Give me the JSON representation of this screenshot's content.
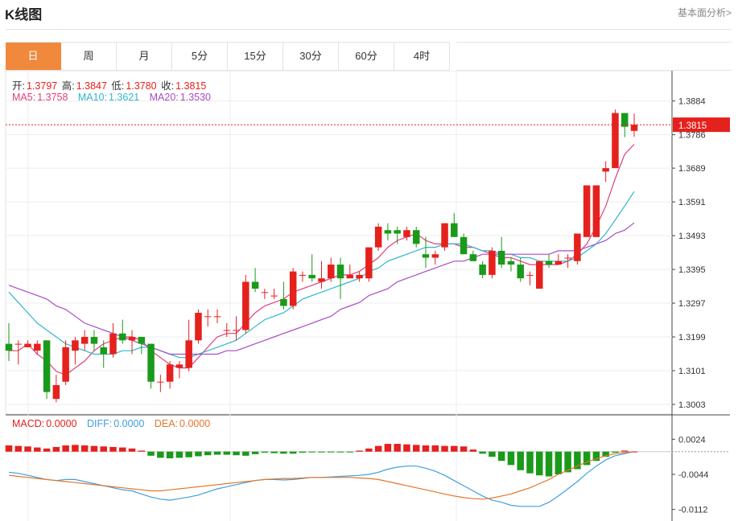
{
  "header": {
    "title": "K线图",
    "link": "基本面分析>"
  },
  "tabs": [
    {
      "label": "日",
      "active": true
    },
    {
      "label": "周"
    },
    {
      "label": "月"
    },
    {
      "label": "5分"
    },
    {
      "label": "15分"
    },
    {
      "label": "30分"
    },
    {
      "label": "60分"
    },
    {
      "label": "4时"
    }
  ],
  "ohlc_info": {
    "open_label": "开:",
    "open": "1.3797",
    "high_label": "高:",
    "high": "1.3847",
    "low_label": "低:",
    "low": "1.3780",
    "close_label": "收:",
    "close": "1.3815"
  },
  "ma_info": {
    "ma5_label": "MA5:",
    "ma5": "1.3758",
    "ma10_label": "MA10:",
    "ma10": "1.3621",
    "ma20_label": "MA20:",
    "ma20": "1.3530"
  },
  "macd_info": {
    "macd_label": "MACD:",
    "macd": "0.0000",
    "diff_label": "DIFF:",
    "diff": "0.0000",
    "dea_label": "DEA:",
    "dea": "0.0000"
  },
  "colors": {
    "up": "#e5211d",
    "down": "#1a9a1a",
    "ma5": "#e0407a",
    "ma10": "#2fb6cf",
    "ma20": "#a84cc4",
    "diff": "#3f9fe0",
    "dea": "#e5762a",
    "accent": "#f0893b"
  },
  "chart_data": [
    {
      "type": "candlestick",
      "y_ticks": [
        "1.3884",
        "1.3786",
        "1.3689",
        "1.3591",
        "1.3493",
        "1.3395",
        "1.3297",
        "1.3199",
        "1.3101",
        "1.3003"
      ],
      "ylim": [
        1.2975,
        1.3925
      ],
      "last_price": "1.3815",
      "candles": [
        [
          1.3179,
          1.3159,
          1.3239,
          1.3129
        ],
        [
          1.3179,
          1.3179,
          1.3189,
          1.3119
        ],
        [
          1.3169,
          1.3179,
          1.3189,
          1.3169
        ],
        [
          1.3159,
          1.3179,
          1.3189,
          1.3149
        ],
        [
          1.3189,
          1.3039,
          1.3189,
          1.3019
        ],
        [
          1.3019,
          1.3059,
          1.3089,
          1.3009
        ],
        [
          1.3069,
          1.3169,
          1.3189,
          1.3059
        ],
        [
          1.3159,
          1.3189,
          1.3199,
          1.3119
        ],
        [
          1.3179,
          1.3199,
          1.3219,
          1.3159
        ],
        [
          1.3199,
          1.3179,
          1.3219,
          1.3159
        ],
        [
          1.3169,
          1.3149,
          1.3189,
          1.3109
        ],
        [
          1.3149,
          1.3209,
          1.3239,
          1.3139
        ],
        [
          1.3209,
          1.3189,
          1.3249,
          1.3179
        ],
        [
          1.3189,
          1.3199,
          1.3219,
          1.3149
        ],
        [
          1.3199,
          1.3179,
          1.3199,
          1.3149
        ],
        [
          1.3179,
          1.3069,
          1.3179,
          1.3049
        ],
        [
          1.3069,
          1.3069,
          1.3089,
          1.3039
        ],
        [
          1.3069,
          1.3119,
          1.3129,
          1.3049
        ],
        [
          1.3109,
          1.3119,
          1.3129,
          1.3079
        ],
        [
          1.3109,
          1.3189,
          1.3249,
          1.3099
        ],
        [
          1.3189,
          1.3269,
          1.3279,
          1.3179
        ],
        [
          1.3259,
          1.3259,
          1.3279,
          1.3229
        ],
        [
          1.3259,
          1.3259,
          1.3279,
          1.3239
        ],
        [
          1.3219,
          1.3219,
          1.3239,
          1.3199
        ],
        [
          1.3219,
          1.3219,
          1.3259,
          1.3189
        ],
        [
          1.3219,
          1.3359,
          1.3379,
          1.3209
        ],
        [
          1.3359,
          1.3339,
          1.3399,
          1.3329
        ],
        [
          1.3329,
          1.3329,
          1.3339,
          1.3309
        ],
        [
          1.3319,
          1.3319,
          1.3339,
          1.3309
        ],
        [
          1.3309,
          1.3289,
          1.3359,
          1.3279
        ],
        [
          1.3289,
          1.3389,
          1.3399,
          1.3279
        ],
        [
          1.3379,
          1.3379,
          1.3389,
          1.3359
        ],
        [
          1.3379,
          1.3369,
          1.3439,
          1.3359
        ],
        [
          1.3359,
          1.3369,
          1.3419,
          1.3339
        ],
        [
          1.3369,
          1.3409,
          1.3429,
          1.3359
        ],
        [
          1.3409,
          1.3369,
          1.3429,
          1.3309
        ],
        [
          1.3369,
          1.3379,
          1.3409,
          1.3369
        ],
        [
          1.3369,
          1.3379,
          1.3389,
          1.3359
        ],
        [
          1.3369,
          1.3459,
          1.3459,
          1.3359
        ],
        [
          1.3459,
          1.3519,
          1.3529,
          1.3449
        ],
        [
          1.3509,
          1.3499,
          1.3529,
          1.3479
        ],
        [
          1.3509,
          1.3499,
          1.3519,
          1.3469
        ],
        [
          1.3489,
          1.3509,
          1.3519,
          1.3479
        ],
        [
          1.3509,
          1.3469,
          1.3519,
          1.3459
        ],
        [
          1.3439,
          1.3429,
          1.3489,
          1.3399
        ],
        [
          1.3429,
          1.3439,
          1.3449,
          1.3409
        ],
        [
          1.3459,
          1.3529,
          1.3529,
          1.3449
        ],
        [
          1.3529,
          1.3489,
          1.3559,
          1.3489
        ],
        [
          1.3489,
          1.3439,
          1.3499,
          1.3439
        ],
        [
          1.3439,
          1.3419,
          1.3449,
          1.3419
        ],
        [
          1.3409,
          1.3379,
          1.3419,
          1.3369
        ],
        [
          1.3379,
          1.3449,
          1.3459,
          1.3369
        ],
        [
          1.3449,
          1.3409,
          1.3489,
          1.3399
        ],
        [
          1.3419,
          1.3409,
          1.3429,
          1.3389
        ],
        [
          1.3409,
          1.3369,
          1.3429,
          1.3359
        ],
        [
          1.3379,
          1.3379,
          1.3389,
          1.3349
        ],
        [
          1.3339,
          1.3419,
          1.3419,
          1.3339
        ],
        [
          1.3419,
          1.3409,
          1.3439,
          1.3399
        ],
        [
          1.3409,
          1.3419,
          1.3439,
          1.3409
        ],
        [
          1.3429,
          1.3429,
          1.3439,
          1.3399
        ],
        [
          1.3419,
          1.3499,
          1.3499,
          1.3409
        ],
        [
          1.3489,
          1.3639,
          1.3639,
          1.3489
        ],
        [
          1.3489,
          1.3639,
          1.3639,
          1.3489
        ],
        [
          1.3679,
          1.3689,
          1.3709,
          1.3649
        ],
        [
          1.3689,
          1.3849,
          1.3859,
          1.3689
        ],
        [
          1.3849,
          1.3809,
          1.3849,
          1.3779
        ],
        [
          1.3797,
          1.3815,
          1.3847,
          1.378
        ]
      ],
      "ma_lines": {
        "MA5": [
          1.3159,
          1.3159,
          1.3179,
          1.3149,
          1.3129,
          1.3099,
          1.3089,
          1.3109,
          1.3129,
          1.3159,
          1.3179,
          1.3189,
          1.3199,
          1.3199,
          1.3189,
          1.3159,
          1.3139,
          1.3119,
          1.3109,
          1.3109,
          1.3139,
          1.3169,
          1.3199,
          1.3209,
          1.3209,
          1.3239,
          1.3269,
          1.3289,
          1.3299,
          1.3309,
          1.3329,
          1.3339,
          1.3349,
          1.3359,
          1.3369,
          1.3379,
          1.3379,
          1.3389,
          1.3409,
          1.3429,
          1.3459,
          1.3479,
          1.3489,
          1.3499,
          1.3479,
          1.3469,
          1.3469,
          1.3469,
          1.3459,
          1.3459,
          1.3449,
          1.3439,
          1.3429,
          1.3429,
          1.3419,
          1.3409,
          1.3409,
          1.3409,
          1.3409,
          1.3419,
          1.3439,
          1.3469,
          1.3519,
          1.3579,
          1.3659,
          1.3729,
          1.3758
        ],
        "MA10": [
          1.3329,
          1.3299,
          1.3269,
          1.3239,
          1.3219,
          1.3199,
          1.3179,
          1.3169,
          1.3159,
          1.3149,
          1.3149,
          1.3149,
          1.3159,
          1.3159,
          1.3169,
          1.3169,
          1.3159,
          1.3149,
          1.3139,
          1.3139,
          1.3149,
          1.3159,
          1.3169,
          1.3179,
          1.3189,
          1.3209,
          1.3229,
          1.3249,
          1.3259,
          1.3269,
          1.3289,
          1.3309,
          1.3319,
          1.3329,
          1.3339,
          1.3349,
          1.3359,
          1.3369,
          1.3389,
          1.3399,
          1.3419,
          1.3429,
          1.3439,
          1.3449,
          1.3459,
          1.3459,
          1.3469,
          1.3469,
          1.3469,
          1.3459,
          1.3449,
          1.3449,
          1.3439,
          1.3439,
          1.3429,
          1.3429,
          1.3419,
          1.3419,
          1.3419,
          1.3419,
          1.3429,
          1.3449,
          1.3469,
          1.3499,
          1.3539,
          1.3579,
          1.3621
        ],
        "MA20": [
          1.3349,
          1.3339,
          1.3329,
          1.3319,
          1.3309,
          1.3289,
          1.3279,
          1.3259,
          1.3239,
          1.3229,
          1.3219,
          1.3209,
          1.3199,
          1.3189,
          1.3179,
          1.3169,
          1.3159,
          1.3149,
          1.3149,
          1.3149,
          1.3149,
          1.3149,
          1.3149,
          1.3159,
          1.3159,
          1.3169,
          1.3179,
          1.3189,
          1.3199,
          1.3209,
          1.3219,
          1.3229,
          1.3239,
          1.3249,
          1.3259,
          1.3279,
          1.3289,
          1.3299,
          1.3319,
          1.3329,
          1.3339,
          1.3359,
          1.3369,
          1.3379,
          1.3389,
          1.3399,
          1.3409,
          1.3419,
          1.3419,
          1.3429,
          1.3439,
          1.3439,
          1.3439,
          1.3439,
          1.3439,
          1.3439,
          1.3439,
          1.3439,
          1.3449,
          1.3449,
          1.3449,
          1.3459,
          1.3469,
          1.3479,
          1.3499,
          1.3509,
          1.353
        ]
      }
    },
    {
      "type": "bar",
      "name": "MACD",
      "y_ticks": [
        "0.0024",
        "-0.0044",
        "-0.0112"
      ],
      "ylim": [
        -0.0125,
        0.004
      ],
      "macd": [
        0.0012,
        0.0011,
        0.001,
        0.0008,
        0.0006,
        0.0009,
        0.0012,
        0.0013,
        0.0012,
        0.0011,
        0.001,
        0.0009,
        0.0008,
        0.0006,
        0.0002,
        -0.0008,
        -0.0012,
        -0.0013,
        -0.0012,
        -0.0011,
        -0.0009,
        -0.0007,
        -0.0006,
        -0.0006,
        -0.0007,
        -0.0008,
        -0.0005,
        -0.0002,
        -0.0003,
        -0.0004,
        -0.0004,
        -0.0002,
        -0.0001,
        -0.0001,
        -0.0001,
        -0.0001,
        -0.0001,
        0.0002,
        0.0006,
        0.0011,
        0.0015,
        0.0015,
        0.0014,
        0.0013,
        0.0012,
        0.0012,
        0.0011,
        0.0011,
        0.001,
        0.0004,
        -0.0004,
        -0.001,
        -0.0018,
        -0.0026,
        -0.0036,
        -0.0042,
        -0.0046,
        -0.0048,
        -0.0044,
        -0.004,
        -0.0034,
        -0.0026,
        -0.0018,
        -0.001,
        -0.0002,
        0.0002,
        0.0
      ],
      "diff": [
        -0.004,
        -0.0042,
        -0.0046,
        -0.005,
        -0.0054,
        -0.0056,
        -0.0054,
        -0.0054,
        -0.0058,
        -0.0062,
        -0.0066,
        -0.007,
        -0.0074,
        -0.0076,
        -0.0082,
        -0.0088,
        -0.0092,
        -0.0094,
        -0.0091,
        -0.0088,
        -0.0084,
        -0.0078,
        -0.0072,
        -0.0068,
        -0.0064,
        -0.006,
        -0.0056,
        -0.0054,
        -0.0054,
        -0.0055,
        -0.0054,
        -0.0052,
        -0.005,
        -0.005,
        -0.0049,
        -0.0048,
        -0.0047,
        -0.0046,
        -0.0044,
        -0.004,
        -0.0034,
        -0.003,
        -0.0028,
        -0.0028,
        -0.0032,
        -0.0038,
        -0.0046,
        -0.0056,
        -0.0066,
        -0.0076,
        -0.0086,
        -0.0094,
        -0.0098,
        -0.0104,
        -0.0106,
        -0.0106,
        -0.0106,
        -0.0098,
        -0.0086,
        -0.0072,
        -0.0058,
        -0.0042,
        -0.0028,
        -0.0016,
        -0.0008,
        -0.0004,
        0.0
      ],
      "dea": [
        -0.0046,
        -0.0048,
        -0.005,
        -0.0052,
        -0.0054,
        -0.0056,
        -0.0058,
        -0.006,
        -0.0062,
        -0.0064,
        -0.0066,
        -0.0068,
        -0.007,
        -0.0072,
        -0.0074,
        -0.0076,
        -0.0076,
        -0.0074,
        -0.0072,
        -0.007,
        -0.0068,
        -0.0066,
        -0.0064,
        -0.0062,
        -0.006,
        -0.0058,
        -0.0056,
        -0.0054,
        -0.0053,
        -0.0052,
        -0.0052,
        -0.0051,
        -0.005,
        -0.005,
        -0.005,
        -0.005,
        -0.005,
        -0.0051,
        -0.0052,
        -0.0054,
        -0.0058,
        -0.0062,
        -0.0066,
        -0.007,
        -0.0074,
        -0.0078,
        -0.0082,
        -0.0086,
        -0.0089,
        -0.0091,
        -0.0092,
        -0.009,
        -0.0086,
        -0.0082,
        -0.0076,
        -0.007,
        -0.0062,
        -0.0054,
        -0.0044,
        -0.0036,
        -0.0028,
        -0.002,
        -0.0014,
        -0.0008,
        -0.0004,
        -0.0002,
        0.0
      ]
    }
  ]
}
